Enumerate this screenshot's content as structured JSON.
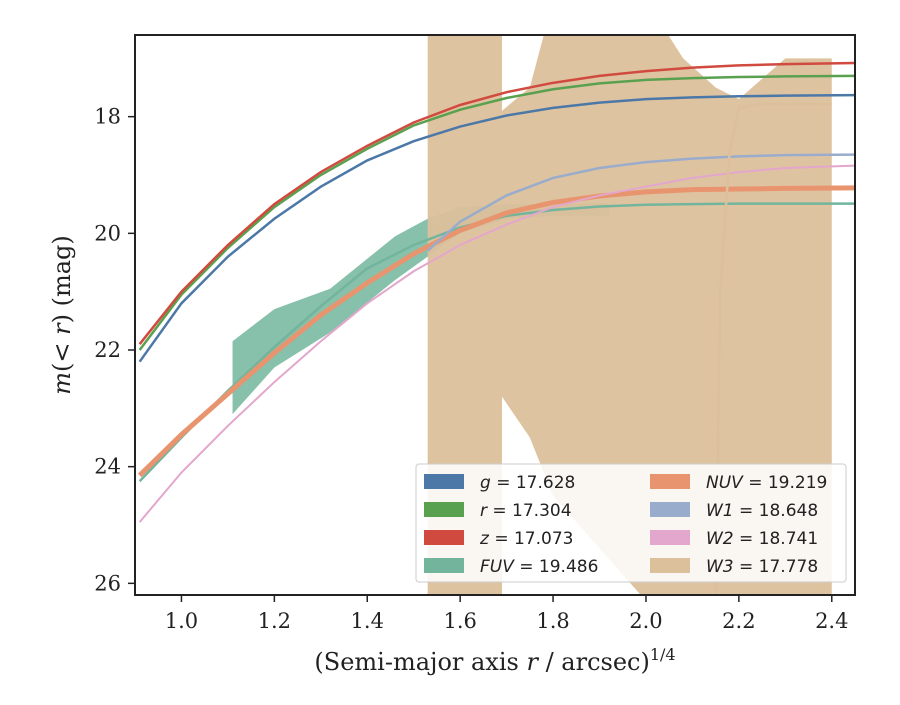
{
  "chart_data": {
    "type": "line",
    "xlabel": "(Semi-major axis r / arcsec)^1/4",
    "ylabel": "m(< r) (mag)",
    "xlim": [
      0.9,
      2.45
    ],
    "ylim": [
      26.2,
      16.6
    ],
    "y_inverted": true,
    "xticks": [
      "1.0",
      "1.2",
      "1.4",
      "1.6",
      "1.8",
      "2.0",
      "2.2",
      "2.4"
    ],
    "yticks": [
      "18",
      "20",
      "22",
      "24",
      "26"
    ],
    "grid": false,
    "legend_position": "lower-right",
    "series": [
      {
        "name": "g = 17.628",
        "label_italic": "g",
        "label_value": "= 17.628",
        "color": "#4c78a8",
        "type": "curve",
        "x": [
          0.91,
          1.0,
          1.1,
          1.2,
          1.3,
          1.4,
          1.5,
          1.6,
          1.7,
          1.8,
          1.9,
          2.0,
          2.1,
          2.2,
          2.3,
          2.45
        ],
        "y": [
          22.2,
          21.2,
          20.4,
          19.75,
          19.2,
          18.75,
          18.42,
          18.17,
          17.98,
          17.85,
          17.76,
          17.7,
          17.67,
          17.65,
          17.64,
          17.63
        ]
      },
      {
        "name": "r = 17.304",
        "label_italic": "r",
        "label_value": "= 17.304",
        "color": "#59a14f",
        "type": "curve",
        "x": [
          0.91,
          1.0,
          1.1,
          1.2,
          1.3,
          1.4,
          1.5,
          1.6,
          1.7,
          1.8,
          1.9,
          2.0,
          2.1,
          2.2,
          2.3,
          2.45
        ],
        "y": [
          22.0,
          21.05,
          20.25,
          19.55,
          19.0,
          18.55,
          18.15,
          17.88,
          17.68,
          17.53,
          17.43,
          17.37,
          17.34,
          17.32,
          17.31,
          17.3
        ]
      },
      {
        "name": "z = 17.073",
        "label_italic": "z",
        "label_value": "= 17.073",
        "color": "#d14a3f",
        "type": "curve",
        "x": [
          0.91,
          1.0,
          1.1,
          1.2,
          1.3,
          1.4,
          1.5,
          1.6,
          1.7,
          1.8,
          1.9,
          2.0,
          2.1,
          2.2,
          2.3,
          2.45
        ],
        "y": [
          21.9,
          21.0,
          20.2,
          19.5,
          18.95,
          18.5,
          18.1,
          17.8,
          17.58,
          17.42,
          17.3,
          17.22,
          17.16,
          17.12,
          17.1,
          17.08
        ]
      },
      {
        "name": "FUV = 19.486",
        "label_italic": "FUV",
        "label_value": "= 19.486",
        "color": "#72b59c",
        "type": "band",
        "x": [
          1.11,
          1.2,
          1.32,
          1.46,
          1.53,
          1.6,
          1.7,
          1.8,
          1.92
        ],
        "y_low": [
          23.1,
          22.3,
          21.7,
          20.8,
          20.4,
          20.0,
          19.75,
          19.7,
          19.7
        ],
        "y_high": [
          21.85,
          21.3,
          20.95,
          20.05,
          19.75,
          19.55,
          19.5,
          19.5,
          19.48
        ],
        "curve_x": [
          0.91,
          1.0,
          1.1,
          1.2,
          1.3,
          1.4,
          1.5,
          1.6,
          1.7,
          1.8,
          1.9,
          2.0,
          2.1,
          2.2,
          2.3,
          2.45
        ],
        "curve_y": [
          24.25,
          23.5,
          22.7,
          21.95,
          21.25,
          20.6,
          20.2,
          19.9,
          19.7,
          19.6,
          19.54,
          19.51,
          19.5,
          19.49,
          19.49,
          19.49
        ]
      },
      {
        "name": "NUV = 19.219",
        "label_italic": "NUV",
        "label_value": "= 19.219",
        "color": "#e8956f",
        "type": "curve",
        "x": [
          0.91,
          1.0,
          1.1,
          1.2,
          1.3,
          1.4,
          1.5,
          1.6,
          1.7,
          1.8,
          1.9,
          2.0,
          2.1,
          2.2,
          2.3,
          2.45
        ],
        "y": [
          24.15,
          23.45,
          22.75,
          22.05,
          21.4,
          20.85,
          20.35,
          19.95,
          19.65,
          19.47,
          19.36,
          19.29,
          19.25,
          19.24,
          19.23,
          19.22
        ]
      },
      {
        "name": "W1 = 18.648",
        "label_italic": "W1",
        "label_value": "= 18.648",
        "color": "#9aaccc",
        "type": "curve",
        "x": [
          1.53,
          1.6,
          1.7,
          1.8,
          1.9,
          2.0,
          2.1,
          2.2,
          2.3,
          2.45
        ],
        "y": [
          20.3,
          19.8,
          19.35,
          19.05,
          18.88,
          18.78,
          18.72,
          18.68,
          18.66,
          18.65
        ]
      },
      {
        "name": "W2 = 18.741",
        "label_italic": "W2",
        "label_value": "= 18.741",
        "color": "#e3a6cc",
        "type": "curve",
        "x": [
          0.91,
          1.0,
          1.1,
          1.2,
          1.3,
          1.4,
          1.5,
          1.6,
          1.7,
          1.8,
          1.9,
          2.0,
          2.1,
          2.2,
          2.3,
          2.45
        ],
        "y": [
          24.95,
          24.1,
          23.3,
          22.55,
          21.85,
          21.2,
          20.65,
          20.2,
          19.85,
          19.55,
          19.35,
          19.2,
          19.05,
          18.95,
          18.88,
          18.84
        ]
      },
      {
        "name": "W3 = 17.778",
        "label_italic": "W3",
        "label_value": "= 17.778",
        "color": "#dcc09c",
        "type": "band",
        "x": [
          1.53,
          1.69,
          1.69,
          1.75,
          1.8,
          2.0,
          2.08,
          2.15,
          2.2,
          2.3,
          2.4,
          2.4
        ],
        "y_low": [
          26.5,
          26.5,
          22.8,
          23.5,
          24.5,
          26.3,
          26.3,
          26.3,
          26.3,
          26.3,
          26.3,
          26.3
        ],
        "y_high": [
          16.0,
          16.0,
          17.9,
          17.5,
          16.0,
          16.0,
          17.0,
          17.5,
          17.7,
          17.0,
          17.0,
          17.0
        ],
        "curve_x": [
          2.15,
          2.16,
          2.18,
          2.2,
          2.25,
          2.3,
          2.35,
          2.4
        ],
        "curve_y": [
          26.3,
          21.0,
          18.6,
          17.85,
          17.78,
          17.78,
          17.78,
          17.78
        ]
      }
    ]
  }
}
